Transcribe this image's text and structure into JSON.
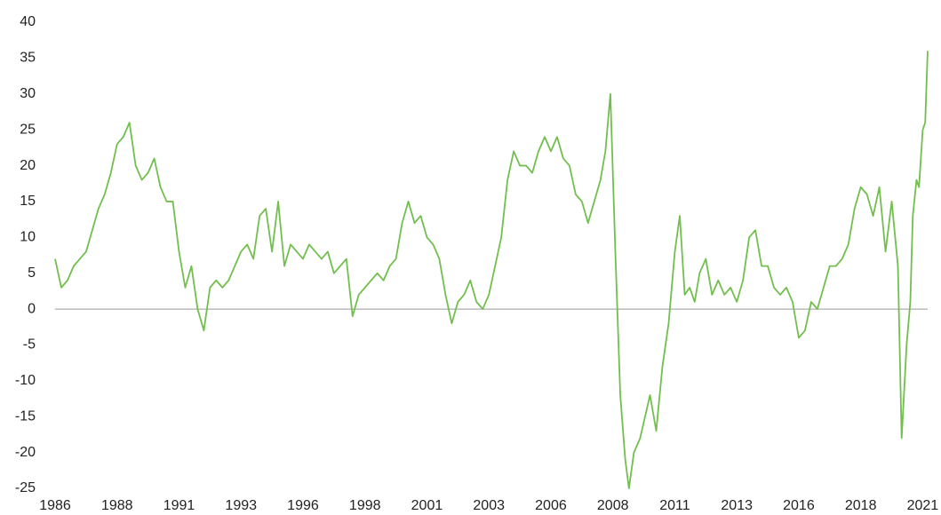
{
  "chart_data": {
    "type": "line",
    "x": [
      1986,
      1986.25,
      1986.5,
      1986.75,
      1987,
      1987.25,
      1987.5,
      1987.75,
      1988,
      1988.25,
      1988.5,
      1988.75,
      1989,
      1989.25,
      1989.5,
      1989.75,
      1990,
      1990.25,
      1990.5,
      1990.75,
      1991,
      1991.25,
      1991.5,
      1991.75,
      1992,
      1992.25,
      1992.5,
      1992.75,
      1993,
      1993.25,
      1993.5,
      1993.75,
      1994,
      1994.25,
      1994.5,
      1994.75,
      1995,
      1995.25,
      1995.5,
      1995.75,
      1996,
      1996.25,
      1996.5,
      1996.75,
      1997,
      1997.25,
      1997.5,
      1997.75,
      1998,
      1998.25,
      1998.5,
      1998.75,
      1999,
      1999.25,
      1999.5,
      1999.75,
      2000,
      2000.25,
      2000.5,
      2000.75,
      2001,
      2001.25,
      2001.5,
      2001.75,
      2002,
      2002.25,
      2002.5,
      2002.75,
      2003,
      2003.25,
      2003.5,
      2003.75,
      2004,
      2004.25,
      2004.5,
      2004.75,
      2005,
      2005.25,
      2005.5,
      2005.75,
      2006,
      2006.25,
      2006.5,
      2006.75,
      2007,
      2007.25,
      2007.5,
      2007.75,
      2008,
      2008.2,
      2008.4,
      2008.6,
      2008.8,
      2009,
      2009.15,
      2009.35,
      2009.6,
      2009.8,
      2010,
      2010.25,
      2010.5,
      2010.75,
      2011,
      2011.2,
      2011.4,
      2011.6,
      2011.8,
      2012,
      2012.25,
      2012.5,
      2012.75,
      2013,
      2013.25,
      2013.5,
      2013.75,
      2014,
      2014.25,
      2014.5,
      2014.75,
      2015,
      2015.25,
      2015.5,
      2015.75,
      2016,
      2016.25,
      2016.5,
      2016.75,
      2017,
      2017.25,
      2017.5,
      2017.75,
      2018,
      2018.25,
      2018.5,
      2018.75,
      2019,
      2019.25,
      2019.5,
      2019.75,
      2020,
      2020.15,
      2020.35,
      2020.5,
      2020.6,
      2020.75,
      2020.85,
      2021,
      2021.1,
      2021.2
    ],
    "series": [
      {
        "color": "#72bf4f",
        "values": [
          7,
          3,
          4,
          6,
          7,
          8,
          11,
          14,
          16,
          19,
          23,
          24,
          26,
          20,
          18,
          19,
          21,
          17,
          15,
          15,
          8,
          3,
          6,
          0,
          -3,
          3,
          4,
          3,
          4,
          6,
          8,
          9,
          7,
          13,
          14,
          8,
          15,
          6,
          9,
          8,
          7,
          9,
          8,
          7,
          8,
          5,
          6,
          7,
          -1,
          2,
          3,
          4,
          5,
          4,
          6,
          7,
          12,
          15,
          12,
          13,
          10,
          9,
          7,
          2,
          -2,
          1,
          2,
          4,
          1,
          0,
          2,
          6,
          10,
          18,
          22,
          20,
          20,
          19,
          22,
          24,
          22,
          24,
          21,
          20,
          16,
          15,
          12,
          15,
          18,
          22,
          30,
          8,
          -12,
          -21,
          -25,
          -20,
          -18,
          -15,
          -12,
          -17,
          -8,
          -2,
          8,
          13,
          2,
          3,
          1,
          5,
          7,
          2,
          4,
          2,
          3,
          1,
          4,
          10,
          11,
          6,
          6,
          3,
          2,
          3,
          1,
          -4,
          -3,
          1,
          0,
          3,
          6,
          6,
          7,
          9,
          14,
          17,
          16,
          13,
          17,
          8,
          15,
          6,
          -18,
          -5,
          1,
          13,
          18,
          17,
          25,
          26,
          36
        ]
      }
    ],
    "xlim": [
      1986,
      2021.2
    ],
    "xticks": [
      1986,
      {
        "value": 1988.5,
        "label": "1988"
      },
      1991,
      {
        "value": 1993.5,
        "label": "1993"
      },
      1996,
      {
        "value": 1998.5,
        "label": "1998"
      },
      2001,
      {
        "value": 2003.5,
        "label": "2003"
      },
      2006,
      {
        "value": 2008.5,
        "label": "2008"
      },
      2011,
      {
        "value": 2013.5,
        "label": "2013"
      },
      2016,
      {
        "value": 2018.5,
        "label": "2018"
      },
      2021
    ],
    "ylim": [
      -25,
      40
    ],
    "yticks": [
      -25,
      -20,
      -15,
      -10,
      -5,
      0,
      5,
      10,
      15,
      20,
      25,
      30,
      35,
      40
    ]
  }
}
